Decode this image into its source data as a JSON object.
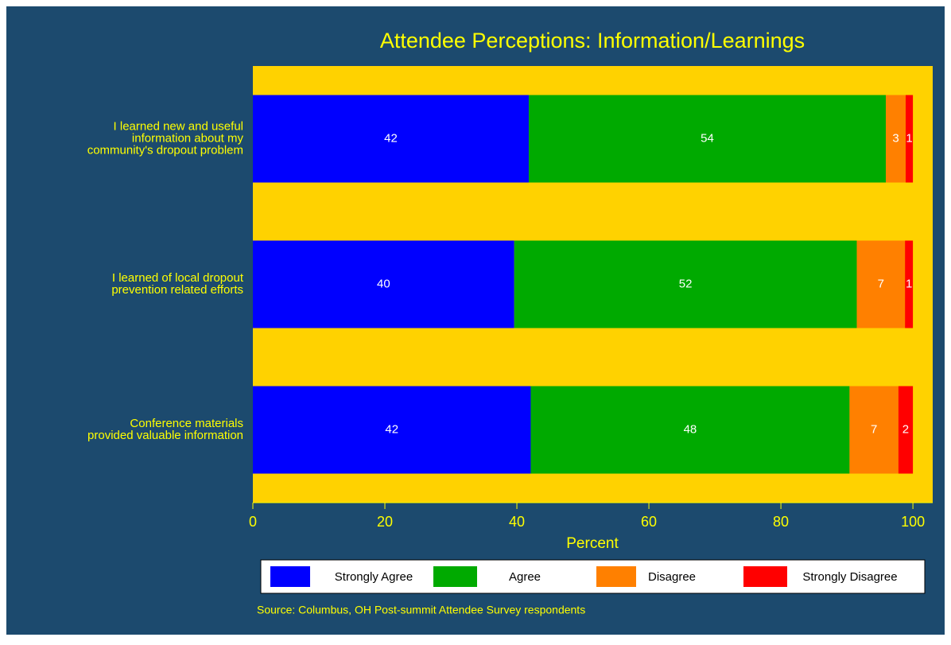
{
  "chart_data": {
    "type": "stacked_barh",
    "title": "Attendee Perceptions: Information/Learnings",
    "xlabel": "Percent",
    "source": "Source: Columbus, OH Post-summit Attendee Survey respondents",
    "categories": [
      [
        "I learned new and useful",
        "information about my",
        "community's dropout problem"
      ],
      [
        "I learned of local dropout",
        "prevention related efforts"
      ],
      [
        "Conference materials",
        "provided valuable information"
      ]
    ],
    "series": [
      {
        "name": "Strongly Agree",
        "color": "#0000ff",
        "values": [
          41.8,
          39.6,
          42.1
        ],
        "value_labels": [
          "42",
          "40",
          "42"
        ]
      },
      {
        "name": "Agree",
        "color": "#00aa00",
        "values": [
          54.1,
          51.9,
          48.3
        ],
        "value_labels": [
          "54",
          "52",
          "48"
        ]
      },
      {
        "name": "Disagree",
        "color": "#ff8000",
        "values": [
          3.0,
          7.3,
          7.4
        ],
        "value_labels": [
          "3",
          "7",
          "7"
        ]
      },
      {
        "name": "Strongly Disagree",
        "color": "#ff0000",
        "values": [
          1.1,
          1.2,
          2.2
        ],
        "value_labels": [
          "1",
          "1",
          "2"
        ]
      }
    ],
    "xlim": [
      0,
      103
    ],
    "xticks": [
      0,
      20,
      40,
      60,
      80,
      100
    ],
    "legend": "bottom"
  }
}
